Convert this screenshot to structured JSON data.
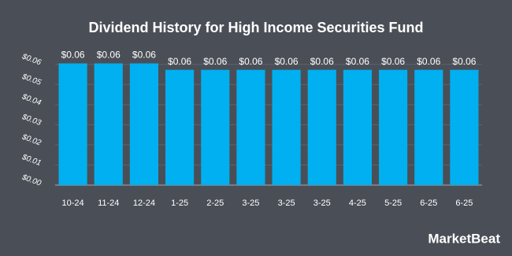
{
  "chart_data": {
    "type": "bar",
    "title": "Dividend History for High Income Securities Fund",
    "categories": [
      "10-24",
      "11-24",
      "12-24",
      "1-25",
      "2-25",
      "3-25",
      "3-25",
      "3-25",
      "4-25",
      "5-25",
      "6-25",
      "6-25"
    ],
    "values": [
      0.0605,
      0.0605,
      0.0605,
      0.0573,
      0.0573,
      0.0573,
      0.0573,
      0.0573,
      0.0573,
      0.0573,
      0.0573,
      0.0573
    ],
    "value_labels": [
      "$0.06",
      "$0.06",
      "$0.06",
      "$0.06",
      "$0.06",
      "$0.06",
      "$0.06",
      "$0.06",
      "$0.06",
      "$0.06",
      "$0.06",
      "$0.06"
    ],
    "color": "#00b0f0",
    "ylim": [
      0,
      0.065
    ],
    "yticks": [
      {
        "value": 0,
        "label": "$0.00"
      },
      {
        "value": 0.01,
        "label": "$0.01"
      },
      {
        "value": 0.02,
        "label": "$0.02"
      },
      {
        "value": 0.03,
        "label": "$0.03"
      },
      {
        "value": 0.04,
        "label": "$0.04"
      },
      {
        "value": 0.05,
        "label": "$0.05"
      },
      {
        "value": 0.06,
        "label": "$0.06"
      }
    ],
    "grid": true,
    "brand": "MarketBeat"
  }
}
